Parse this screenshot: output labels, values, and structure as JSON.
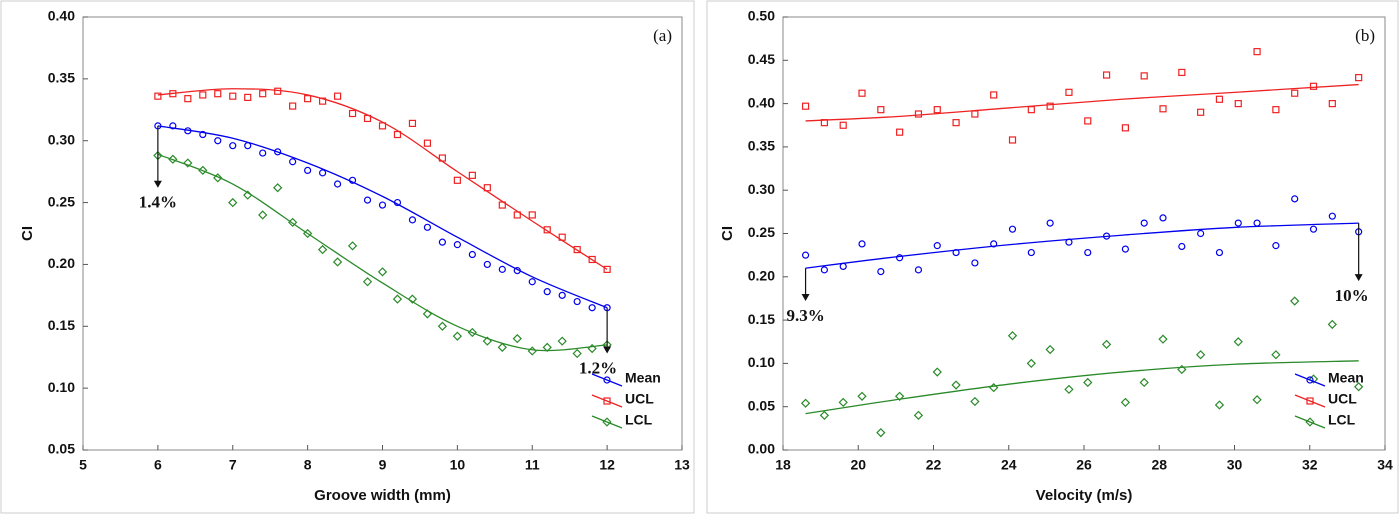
{
  "chart_data": [
    {
      "type": "scatter",
      "panel_label": "(a)",
      "x_label": "Groove width (mm)",
      "y_label": "CI",
      "xlim": [
        5,
        13
      ],
      "xticks": [
        5,
        6,
        7,
        8,
        9,
        10,
        11,
        12,
        13
      ],
      "ylim": [
        0.05,
        0.4
      ],
      "yticks": [
        0.05,
        {
          "value": 0.1,
          "label": "0.10"
        },
        0.15,
        {
          "value": 0.2,
          "label": "0.20"
        },
        0.25,
        {
          "value": 0.3,
          "label": "0.30"
        },
        0.35,
        {
          "value": 0.4,
          "label": "0.40"
        }
      ],
      "legend": "lower right",
      "x": [
        6,
        6.2,
        6.4,
        6.6,
        6.8,
        7,
        7.2,
        7.4,
        7.6,
        7.8,
        8,
        8.2,
        8.4,
        8.6,
        8.8,
        9,
        9.2,
        9.4,
        9.6,
        9.8,
        10,
        10.2,
        10.4,
        10.6,
        10.8,
        11,
        11.2,
        11.4,
        11.6,
        11.8,
        12
      ],
      "series": [
        {
          "name": "Mean",
          "color": "#0000ee",
          "marker": "circle",
          "values": [
            0.312,
            0.312,
            0.308,
            0.305,
            0.3,
            0.296,
            0.296,
            0.29,
            0.291,
            0.283,
            0.276,
            0.274,
            0.265,
            0.268,
            0.252,
            0.248,
            0.25,
            0.236,
            0.23,
            0.218,
            0.216,
            0.208,
            0.2,
            0.196,
            0.195,
            0.186,
            0.178,
            0.175,
            0.17,
            0.165,
            0.165
          ],
          "fit_x": [
            6,
            7,
            8,
            9,
            10,
            11,
            12
          ],
          "fit_values": [
            0.312,
            0.302,
            0.282,
            0.255,
            0.222,
            0.19,
            0.165
          ]
        },
        {
          "name": "UCL",
          "color": "#ee2222",
          "marker": "square",
          "values": [
            0.336,
            0.338,
            0.334,
            0.337,
            0.338,
            0.336,
            0.335,
            0.338,
            0.34,
            0.328,
            0.334,
            0.332,
            0.336,
            0.322,
            0.318,
            0.312,
            0.305,
            0.314,
            0.298,
            0.286,
            0.268,
            0.272,
            0.262,
            0.248,
            0.24,
            0.24,
            0.228,
            0.222,
            0.212,
            0.204,
            0.196
          ],
          "fit_x": [
            6,
            7,
            8,
            9,
            10,
            11,
            12
          ],
          "fit_values": [
            0.337,
            0.342,
            0.337,
            0.315,
            0.275,
            0.235,
            0.196
          ]
        },
        {
          "name": "LCL",
          "color": "#2a8a2a",
          "marker": "diamond",
          "values": [
            0.288,
            0.285,
            0.282,
            0.276,
            0.27,
            0.25,
            0.256,
            0.24,
            0.262,
            0.234,
            0.225,
            0.212,
            0.202,
            0.215,
            0.186,
            0.194,
            0.172,
            0.172,
            0.16,
            0.15,
            0.142,
            0.145,
            0.138,
            0.133,
            0.14,
            0.13,
            0.133,
            0.138,
            0.128,
            0.132,
            0.135
          ],
          "fit_x": [
            6,
            7,
            8,
            9,
            10,
            11,
            12
          ],
          "fit_values": [
            0.289,
            0.265,
            0.225,
            0.185,
            0.15,
            0.131,
            0.135
          ]
        }
      ],
      "annotations": [
        {
          "text": "1.4%",
          "x": 6,
          "y_from": 0.312,
          "y_to": 0.262
        },
        {
          "text": "1.2%",
          "x": 12,
          "y_from": 0.165,
          "y_to": 0.128
        }
      ]
    },
    {
      "type": "scatter",
      "panel_label": "(b)",
      "x_label": "Velocity (m/s)",
      "y_label": "CI",
      "xlim": [
        18,
        34
      ],
      "xticks": [
        18,
        20,
        22,
        24,
        26,
        28,
        30,
        32,
        34
      ],
      "ylim": [
        0,
        0.5
      ],
      "yticks": [
        {
          "value": 0,
          "label": "0.00"
        },
        0.05,
        {
          "value": 0.1,
          "label": "0.10"
        },
        0.15,
        {
          "value": 0.2,
          "label": "0.20"
        },
        0.25,
        {
          "value": 0.3,
          "label": "0.30"
        },
        0.35,
        {
          "value": 0.4,
          "label": "0.40"
        },
        0.45,
        {
          "value": 0.5,
          "label": "0.50"
        }
      ],
      "legend": "lower right",
      "x": [
        18.6,
        19.1,
        19.6,
        20.1,
        20.6,
        21.1,
        21.6,
        22.1,
        22.6,
        23.1,
        23.6,
        24.1,
        24.6,
        25.1,
        25.6,
        26.1,
        26.6,
        27.1,
        27.6,
        28.1,
        28.6,
        29.1,
        29.6,
        30.1,
        30.6,
        31.1,
        31.6,
        32.1,
        32.6,
        33.3
      ],
      "series": [
        {
          "name": "Mean",
          "color": "#0000ee",
          "marker": "circle",
          "values": [
            0.225,
            0.208,
            0.212,
            0.238,
            0.206,
            0.222,
            0.208,
            0.236,
            0.228,
            0.216,
            0.238,
            0.255,
            0.228,
            0.262,
            0.24,
            0.228,
            0.247,
            0.232,
            0.262,
            0.268,
            0.235,
            0.25,
            0.228,
            0.262,
            0.262,
            0.236,
            0.29,
            0.255,
            0.27,
            0.252
          ],
          "fit_x": [
            18.6,
            21,
            24,
            27,
            30,
            33.3
          ],
          "fit_values": [
            0.21,
            0.223,
            0.237,
            0.248,
            0.257,
            0.262
          ]
        },
        {
          "name": "UCL",
          "color": "#ee2222",
          "marker": "square",
          "values": [
            0.397,
            0.378,
            0.375,
            0.412,
            0.393,
            0.367,
            0.388,
            0.393,
            0.378,
            0.388,
            0.41,
            0.358,
            0.393,
            0.397,
            0.413,
            0.38,
            0.433,
            0.372,
            0.432,
            0.394,
            0.436,
            0.39,
            0.405,
            0.4,
            0.46,
            0.393,
            0.412,
            0.42,
            0.4,
            0.43
          ],
          "fit_x": [
            18.6,
            21,
            24,
            27,
            30,
            33.3
          ],
          "fit_values": [
            0.38,
            0.385,
            0.395,
            0.405,
            0.413,
            0.422
          ]
        },
        {
          "name": "LCL",
          "color": "#2a8a2a",
          "marker": "diamond",
          "values": [
            0.054,
            0.04,
            0.055,
            0.062,
            0.02,
            0.062,
            0.04,
            0.09,
            0.075,
            0.056,
            0.072,
            0.132,
            0.1,
            0.116,
            0.07,
            0.078,
            0.122,
            0.055,
            0.078,
            0.128,
            0.093,
            0.11,
            0.052,
            0.125,
            0.058,
            0.11,
            0.172,
            0.082,
            0.145,
            0.073
          ],
          "fit_x": [
            18.6,
            21,
            24,
            27,
            30,
            33.3
          ],
          "fit_values": [
            0.042,
            0.058,
            0.076,
            0.09,
            0.099,
            0.103
          ]
        }
      ],
      "annotations": [
        {
          "text": "9.3%",
          "x": 18.6,
          "y_from": 0.21,
          "y_to": 0.172
        },
        {
          "text": "10%",
          "x": 33.3,
          "y_from": 0.262,
          "y_to": 0.195
        }
      ]
    }
  ]
}
